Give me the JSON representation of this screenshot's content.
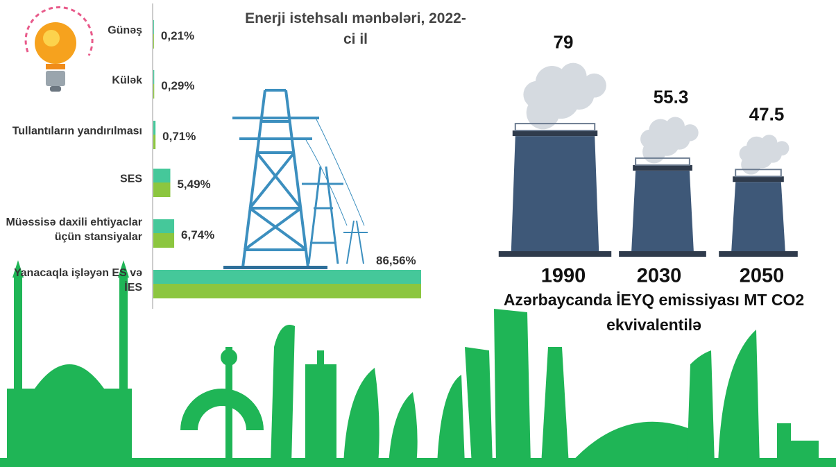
{
  "chart_data": [
    {
      "type": "bar",
      "orientation": "horizontal",
      "title": "Enerji istehsalı mənbələri, 2022-ci il",
      "categories": [
        "Günəş",
        "Külək",
        "Tullantıların yandırılması",
        "SES",
        "Müəssisə daxili ehtiyaclar üçün stansiyalar",
        "Yanacaqla işləyən ES və İES"
      ],
      "values": [
        0.21,
        0.29,
        0.71,
        5.49,
        6.74,
        86.56
      ],
      "value_labels": [
        "0,21%",
        "0,29%",
        "0,71%",
        "5,49%",
        "6,74%",
        "86,56%"
      ],
      "colors": [
        "#45c89a",
        "#8cc63f"
      ]
    },
    {
      "type": "chimney",
      "title": "Azərbaycanda İEYQ emissiyası  MT CO2 ekvivalentilə",
      "categories": [
        "1990",
        "2030",
        "2050"
      ],
      "values": [
        79,
        55.3,
        47.5
      ],
      "color": "#3e5878"
    }
  ]
}
